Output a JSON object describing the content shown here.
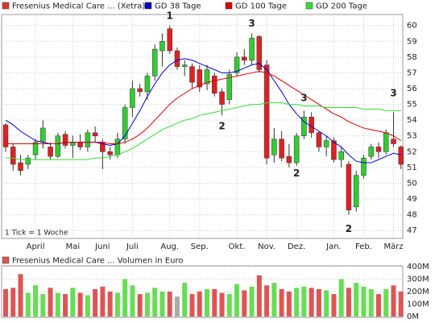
{
  "chart_data": [
    {
      "type": "candlestick",
      "footnote": "1 Tick = 1 Woche",
      "ylim": [
        46.5,
        60.7
      ],
      "yticks": [
        47,
        48,
        49,
        50,
        51,
        52,
        53,
        54,
        55,
        56,
        57,
        58,
        59,
        60
      ],
      "grid": true,
      "month_labels": [
        {
          "label": "April",
          "index": 4
        },
        {
          "label": "Mai",
          "index": 9
        },
        {
          "label": "Juni",
          "index": 13
        },
        {
          "label": "Juli",
          "index": 17
        },
        {
          "label": "Aug.",
          "index": 22
        },
        {
          "label": "Sep.",
          "index": 26
        },
        {
          "label": "Okt.",
          "index": 31
        },
        {
          "label": "Nov.",
          "index": 35
        },
        {
          "label": "Dez.",
          "index": 39
        },
        {
          "label": "Jan.",
          "index": 44
        },
        {
          "label": "Feb.",
          "index": 48
        },
        {
          "label": "März",
          "index": 52
        }
      ],
      "annotations": [
        {
          "text": "1",
          "index": 22,
          "y": 60.6
        },
        {
          "text": "2",
          "index": 29,
          "y": 53.6
        },
        {
          "text": "3",
          "index": 33,
          "y": 60.1
        },
        {
          "text": "3",
          "index": 40,
          "y": 55.4
        },
        {
          "text": "2",
          "index": 39,
          "y": 50.6
        },
        {
          "text": "2",
          "index": 46,
          "y": 47.1
        },
        {
          "text": "3",
          "index": 52,
          "y": 55.7
        }
      ],
      "series": [
        {
          "name": "Fresenius Medical Care ... (Xetra)",
          "color": "#dd3333",
          "up_color": "#33cc33",
          "down_color": "#dd2222",
          "open": [
            53.7,
            52.3,
            51.3,
            51.2,
            51.8,
            52.6,
            52.3,
            51.7,
            53.1,
            52.4,
            52.6,
            52.3,
            53.2,
            52.6,
            52.0,
            51.8,
            52.8,
            54.8,
            56.0,
            55.8,
            56.8,
            58.4,
            59.8,
            58.4,
            57.4,
            57.4,
            57.2,
            56.3,
            56.8,
            55.8,
            55.3,
            57.0,
            58.0,
            57.8,
            59.3,
            57.5,
            51.8,
            52.8,
            51.7,
            51.3,
            53.0,
            54.2,
            53.2,
            52.3,
            52.7,
            51.5,
            51.2,
            48.5,
            50.5,
            51.7,
            52.3,
            52.0,
            52.8,
            52.3
          ],
          "high": [
            53.8,
            52.5,
            51.8,
            51.8,
            52.8,
            54.0,
            52.6,
            53.2,
            53.3,
            53.0,
            53.1,
            53.4,
            53.6,
            52.8,
            52.3,
            53.2,
            55.0,
            56.5,
            56.3,
            57.0,
            58.8,
            59.5,
            60.0,
            58.6,
            57.8,
            57.6,
            57.5,
            57.5,
            57.0,
            56.0,
            57.2,
            58.3,
            58.5,
            59.5,
            59.4,
            57.8,
            53.5,
            53.3,
            52.5,
            53.2,
            54.6,
            54.5,
            53.3,
            53.0,
            52.9,
            52.3,
            51.4,
            50.8,
            51.8,
            52.5,
            52.6,
            53.4,
            54.5,
            52.4
          ],
          "low": [
            52.0,
            50.8,
            50.5,
            50.9,
            51.5,
            52.2,
            51.5,
            51.6,
            52.2,
            51.6,
            52.1,
            52.0,
            52.6,
            50.9,
            51.5,
            51.6,
            52.5,
            54.2,
            55.5,
            55.3,
            56.5,
            57.4,
            58.2,
            57.2,
            56.8,
            56.0,
            55.8,
            55.9,
            55.5,
            54.3,
            55.0,
            56.8,
            57.5,
            57.5,
            57.0,
            51.2,
            51.3,
            51.4,
            51.0,
            51.1,
            52.8,
            52.9,
            52.0,
            51.7,
            51.3,
            51.0,
            48.0,
            48.2,
            50.3,
            51.5,
            51.6,
            51.8,
            52.3,
            50.9
          ],
          "close": [
            52.3,
            51.2,
            50.8,
            51.6,
            52.6,
            53.5,
            51.7,
            53.0,
            52.4,
            52.6,
            52.3,
            53.2,
            53.0,
            52.0,
            51.8,
            52.8,
            54.8,
            56.0,
            55.8,
            56.8,
            58.5,
            59.0,
            58.4,
            57.4,
            57.5,
            56.4,
            56.1,
            57.2,
            55.7,
            55.0,
            56.9,
            58.0,
            57.8,
            59.2,
            57.2,
            51.6,
            52.8,
            51.6,
            51.3,
            53.0,
            54.2,
            53.2,
            52.3,
            52.7,
            51.5,
            52.0,
            48.3,
            50.5,
            51.6,
            52.3,
            52.0,
            53.2,
            52.5,
            51.2
          ]
        },
        {
          "name": "GD 38 Tage",
          "color": "#0000cc",
          "values": [
            54.0,
            53.7,
            53.3,
            53.0,
            52.7,
            52.6,
            52.5,
            52.5,
            52.6,
            52.6,
            52.6,
            52.6,
            52.6,
            52.5,
            52.4,
            52.5,
            53.0,
            53.8,
            54.6,
            55.5,
            56.3,
            57.0,
            57.5,
            57.8,
            57.9,
            57.8,
            57.6,
            57.4,
            57.2,
            57.0,
            57.0,
            57.1,
            57.3,
            57.5,
            57.6,
            57.2,
            56.5,
            55.8,
            55.0,
            54.4,
            53.9,
            53.6,
            53.3,
            53.0,
            52.6,
            52.3,
            51.8,
            51.4,
            51.3,
            51.3,
            51.5,
            51.7,
            51.9,
            51.8
          ]
        },
        {
          "name": "GD 100 Tage",
          "color": "#dd0000",
          "values": [
            52.5,
            52.5,
            52.5,
            52.5,
            52.5,
            52.5,
            52.5,
            52.5,
            52.6,
            52.6,
            52.6,
            52.6,
            52.6,
            52.6,
            52.5,
            52.5,
            52.6,
            52.8,
            53.1,
            53.5,
            54.0,
            54.5,
            55.0,
            55.4,
            55.7,
            56.0,
            56.2,
            56.4,
            56.5,
            56.6,
            56.7,
            56.8,
            56.9,
            57.0,
            57.1,
            57.0,
            56.8,
            56.5,
            56.2,
            55.9,
            55.6,
            55.3,
            55.0,
            54.7,
            54.4,
            54.2,
            53.9,
            53.7,
            53.5,
            53.4,
            53.3,
            53.2,
            53.0,
            52.7
          ]
        },
        {
          "name": "GD 200 Tage",
          "color": "#33dd33",
          "values": [
            51.6,
            51.6,
            51.5,
            51.5,
            51.5,
            51.5,
            51.5,
            51.5,
            51.5,
            51.5,
            51.5,
            51.5,
            51.6,
            51.6,
            51.7,
            51.8,
            52.0,
            52.2,
            52.5,
            52.8,
            53.1,
            53.4,
            53.6,
            53.8,
            54.0,
            54.1,
            54.3,
            54.4,
            54.5,
            54.6,
            54.7,
            54.8,
            54.9,
            55.0,
            55.0,
            55.1,
            55.1,
            55.1,
            55.0,
            55.0,
            54.9,
            54.9,
            54.9,
            54.8,
            54.8,
            54.8,
            54.8,
            54.8,
            54.7,
            54.7,
            54.7,
            54.6,
            54.6,
            54.6
          ]
        }
      ]
    },
    {
      "type": "bar",
      "ylim": [
        0,
        400
      ],
      "yticks": [
        {
          "value": 0,
          "label": "0M"
        },
        {
          "value": 100,
          "label": "100M"
        },
        {
          "value": 200,
          "label": "200M"
        },
        {
          "value": 300,
          "label": "300M"
        },
        {
          "value": 400,
          "label": "400M"
        }
      ],
      "grid": true,
      "series": [
        {
          "name": "Fresenius Medical Care ... Volumen in Euro",
          "color": "#dd5555",
          "values": [
            220,
            230,
            340,
            190,
            250,
            180,
            230,
            190,
            180,
            230,
            190,
            170,
            220,
            240,
            200,
            190,
            300,
            250,
            180,
            190,
            230,
            200,
            200,
            160,
            270,
            180,
            200,
            220,
            220,
            190,
            180,
            260,
            210,
            240,
            330,
            250,
            270,
            220,
            200,
            230,
            240,
            230,
            220,
            210,
            180,
            300,
            230,
            270,
            240,
            220,
            180,
            220,
            250,
            200
          ],
          "colors": [
            "#dd5555",
            "#dd5555",
            "#dd5555",
            "#66dd55",
            "#66dd55",
            "#66dd55",
            "#dd5555",
            "#66dd55",
            "#dd5555",
            "#66dd55",
            "#dd5555",
            "#66dd55",
            "#dd5555",
            "#dd5555",
            "#dd5555",
            "#66dd55",
            "#66dd55",
            "#66dd55",
            "#dd5555",
            "#66dd55",
            "#66dd55",
            "#66dd55",
            "#dd5555",
            "#aaaaaa",
            "#66dd55",
            "#dd5555",
            "#dd5555",
            "#66dd55",
            "#dd5555",
            "#dd5555",
            "#66dd55",
            "#66dd55",
            "#dd5555",
            "#66dd55",
            "#dd5555",
            "#dd5555",
            "#66dd55",
            "#dd5555",
            "#dd5555",
            "#66dd55",
            "#66dd55",
            "#dd5555",
            "#dd5555",
            "#66dd55",
            "#dd5555",
            "#66dd55",
            "#dd5555",
            "#66dd55",
            "#66dd55",
            "#66dd55",
            "#dd5555",
            "#66dd55",
            "#dd5555",
            "#dd5555"
          ]
        }
      ]
    }
  ]
}
